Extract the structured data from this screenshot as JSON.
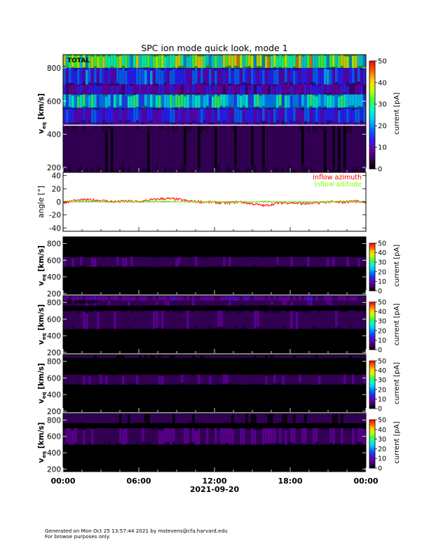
{
  "title": "SPC ion mode quick look, mode 1",
  "footer": {
    "line1": "Generated on Mon Oct 25 13:57:44 2021 by mstevens@cfa.harvard.edu",
    "line2": "For browse purposes only."
  },
  "x_axis": {
    "ticks": [
      "00:00",
      "06:00",
      "12:00",
      "18:00",
      "00:00"
    ],
    "tick_hours": [
      0,
      6,
      12,
      18,
      24
    ],
    "date_label": "2021-09-20"
  },
  "colormap": [
    "#000000",
    "#3a0060",
    "#6a00a8",
    "#2c20ff",
    "#0070ff",
    "#00c8ff",
    "#00ffc8",
    "#40ff40",
    "#c8ff00",
    "#ffd000",
    "#ff6000",
    "#ff0000"
  ],
  "chart_data": [
    {
      "type": "heatmap",
      "panel": "total",
      "label": "TOTAL",
      "ylabel": "v",
      "ylabel_sub": "eq",
      "ylabel_unit": "[km/s]",
      "ylim": [
        170,
        880
      ],
      "yticks": [
        200,
        400,
        600,
        800
      ],
      "xlim_hours": [
        0,
        24
      ],
      "colorbar": {
        "label": "current [pA]",
        "range": [
          0,
          50
        ],
        "ticks": [
          0,
          10,
          20,
          30,
          40,
          50
        ]
      },
      "cutoff_line_kms": 455,
      "bands": [
        {
          "from": 800,
          "to": 880,
          "current": 30
        },
        {
          "from": 700,
          "to": 800,
          "current": 14
        },
        {
          "from": 640,
          "to": 700,
          "current": 10
        },
        {
          "from": 560,
          "to": 640,
          "current": 22
        },
        {
          "from": 470,
          "to": 560,
          "current": 12
        },
        {
          "from": 455,
          "to": 470,
          "current": 8
        },
        {
          "from": 170,
          "to": 455,
          "current": 3
        }
      ]
    },
    {
      "type": "line",
      "panel": "angles",
      "ylabel": "angle [°]",
      "ylim": [
        -45,
        45
      ],
      "yticks": [
        -40,
        -20,
        0,
        20,
        40
      ],
      "xlim_hours": [
        0,
        24
      ],
      "series": [
        {
          "name": "inflow azimuth",
          "color": "#ff0000",
          "x": [
            0,
            1,
            2,
            3,
            4,
            5,
            6,
            7,
            8,
            9,
            10,
            11,
            12,
            13,
            14,
            15,
            16,
            17,
            18,
            19,
            20,
            21,
            22,
            23,
            24
          ],
          "y": [
            -1,
            2,
            3,
            2,
            0,
            1,
            0,
            3,
            5,
            4,
            1,
            0,
            -1,
            -2,
            0,
            -3,
            -6,
            -2,
            -1,
            -3,
            -2,
            0,
            -1,
            1,
            0
          ]
        },
        {
          "name": "inflow altitude",
          "color": "#80ff00",
          "x": [
            0,
            1,
            2,
            3,
            4,
            5,
            6,
            7,
            8,
            9,
            10,
            11,
            12,
            13,
            14,
            15,
            16,
            17,
            18,
            19,
            20,
            21,
            22,
            23,
            24
          ],
          "y": [
            0,
            1,
            1,
            0,
            0,
            1,
            0,
            1,
            1,
            0,
            0,
            0,
            0,
            -1,
            0,
            0,
            1,
            0,
            0,
            -1,
            0,
            0,
            1,
            0,
            0
          ]
        }
      ]
    },
    {
      "type": "heatmap",
      "panel": "sensor-a",
      "label": "",
      "ylabel": "v",
      "ylabel_sub": "eq",
      "ylabel_unit": "[km/s]",
      "ylim": [
        190,
        880
      ],
      "yticks": [
        200,
        400,
        600,
        800
      ],
      "xlim_hours": [
        0,
        24
      ],
      "colorbar": {
        "label": "current [pA]",
        "range": [
          0,
          50
        ],
        "ticks": [
          0,
          10,
          20,
          30,
          40,
          50
        ]
      },
      "bands": [
        {
          "from": 520,
          "to": 640,
          "current": 5
        }
      ]
    },
    {
      "type": "heatmap",
      "panel": "sensor-b",
      "label": "B sensor",
      "ylabel": "v",
      "ylabel_sub": "eq",
      "ylabel_unit": "[km/s]",
      "ylim": [
        190,
        880
      ],
      "yticks": [
        200,
        400,
        600,
        800
      ],
      "xlim_hours": [
        0,
        24
      ],
      "colorbar": {
        "label": "current [pA]",
        "range": [
          0,
          50
        ],
        "ticks": [
          0,
          10,
          20,
          30,
          40,
          50
        ]
      },
      "bands": [
        {
          "from": 820,
          "to": 880,
          "current": 8
        },
        {
          "from": 760,
          "to": 820,
          "current": 5
        },
        {
          "from": 480,
          "to": 700,
          "current": 5
        }
      ]
    },
    {
      "type": "heatmap",
      "panel": "sensor-c",
      "label": "",
      "ylabel": "v",
      "ylabel_sub": "eq",
      "ylabel_unit": "[km/s]",
      "ylim": [
        190,
        880
      ],
      "yticks": [
        200,
        400,
        600,
        800
      ],
      "xlim_hours": [
        0,
        24
      ],
      "colorbar": {
        "label": "current [pA]",
        "range": [
          0,
          50
        ],
        "ticks": [
          0,
          10,
          20,
          30,
          40,
          50
        ]
      },
      "bands": [
        {
          "from": 840,
          "to": 870,
          "current": 3
        },
        {
          "from": 520,
          "to": 640,
          "current": 5
        }
      ]
    },
    {
      "type": "heatmap",
      "panel": "sensor-d",
      "label": "",
      "ylabel": "v",
      "ylabel_sub": "eq",
      "ylabel_unit": "[km/s]",
      "ylim": [
        170,
        880
      ],
      "yticks": [
        200,
        400,
        600,
        800
      ],
      "xlim_hours": [
        0,
        24
      ],
      "colorbar": {
        "label": "current [pA]",
        "range": [
          0,
          50
        ],
        "ticks": [
          0,
          10,
          20,
          30,
          40,
          50
        ]
      },
      "bands": [
        {
          "from": 760,
          "to": 880,
          "current": 3
        },
        {
          "from": 500,
          "to": 700,
          "current": 6
        }
      ]
    }
  ]
}
